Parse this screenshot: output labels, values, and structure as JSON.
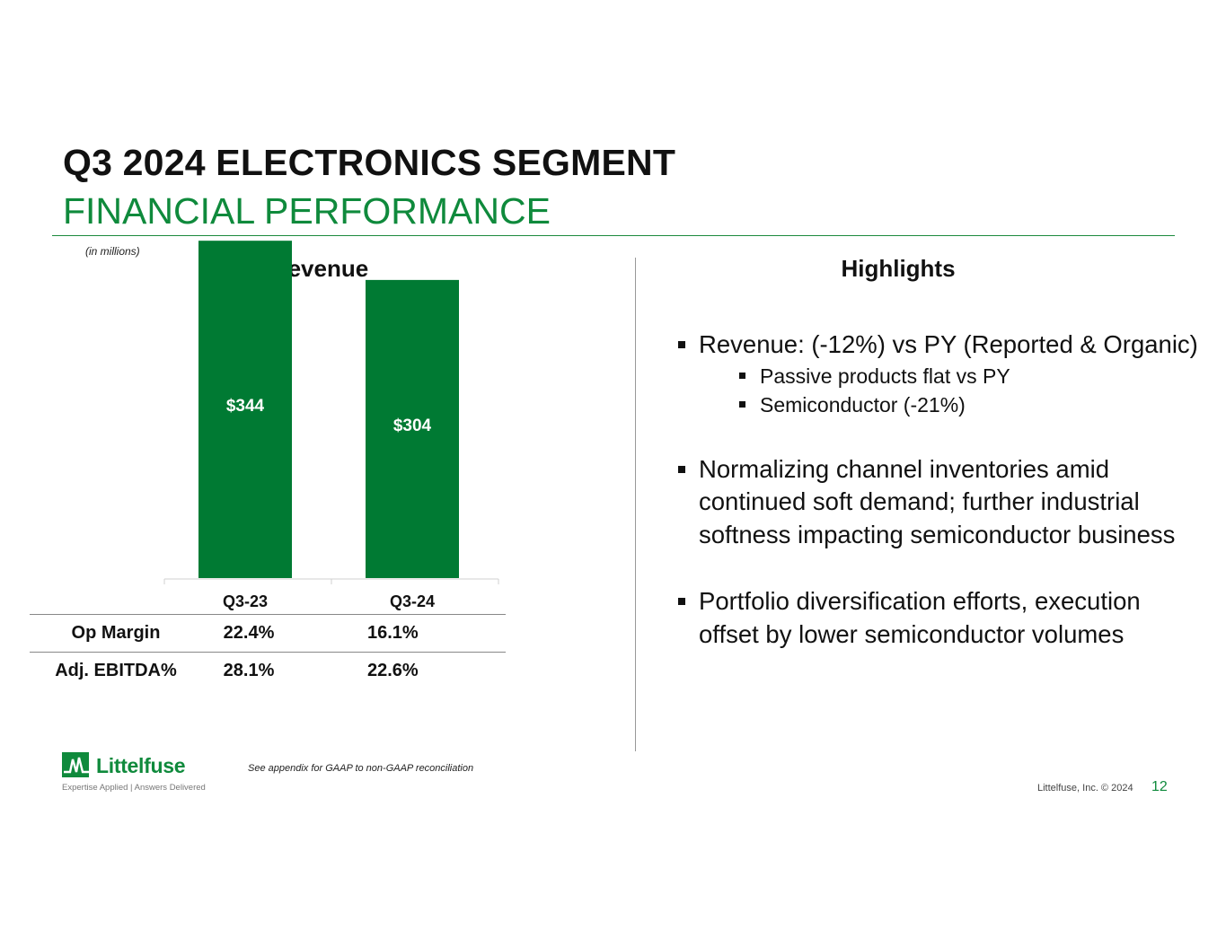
{
  "header": {
    "title": "Q3 2024 ELECTRONICS SEGMENT",
    "subtitle": "FINANCIAL PERFORMANCE"
  },
  "units_note": "(in millions)",
  "revenue_title": "Revenue",
  "chart_data": {
    "type": "bar",
    "title": "Revenue",
    "categories": [
      "Q3-23",
      "Q3-24"
    ],
    "values": [
      344,
      304
    ],
    "data_labels": [
      "$344",
      "$304"
    ],
    "xlabel": "",
    "ylabel": "",
    "ylim": [
      0,
      400
    ],
    "grid": false,
    "bar_color": "#007a33"
  },
  "metrics": {
    "rows": [
      {
        "label": "Op Margin",
        "values": [
          "22.4%",
          "16.1%"
        ]
      },
      {
        "label": "Adj. EBITDA%",
        "values": [
          "28.1%",
          "22.6%"
        ]
      }
    ]
  },
  "highlights": {
    "title": "Highlights",
    "bullet1": "Revenue: (-12%) vs PY (Reported & Organic)",
    "sub1": "Passive products flat vs PY",
    "sub2": "Semiconductor (-21%)",
    "bullet2": "Normalizing channel inventories amid continued soft demand; further industrial softness impacting semiconductor business",
    "bullet3": "Portfolio diversification efforts, execution offset by lower semiconductor volumes"
  },
  "footer": {
    "logo_text": "Littelfuse",
    "logo_tagline": "Expertise Applied | Answers Delivered",
    "footnote": "See appendix for GAAP to non-GAAP reconciliation",
    "copyright": "Littelfuse, Inc. © 2024",
    "page_number": "12"
  },
  "colors": {
    "brand_green": "#0f8a3c",
    "bar_green": "#007a33"
  }
}
